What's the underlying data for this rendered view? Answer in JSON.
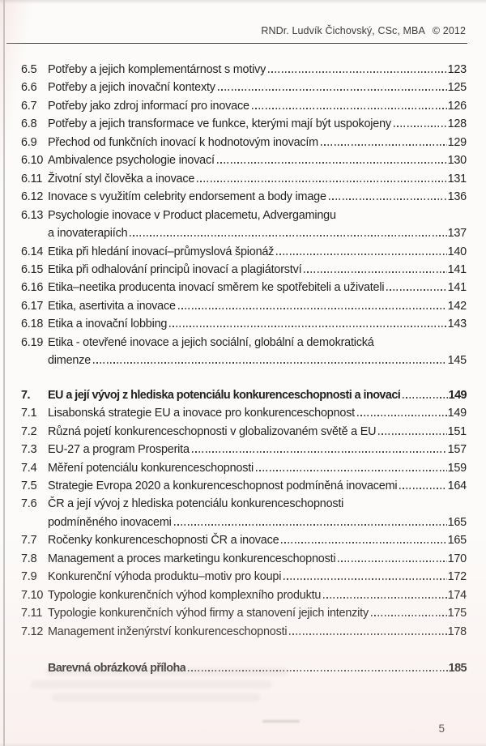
{
  "header": {
    "credit": "RNDr. Ludvík Čichovský, CSc, MBA",
    "copyright": "© 2012"
  },
  "toc": {
    "entries": [
      {
        "num": "6.5",
        "title": "Potřeby a jejich komplementárnost s motivy",
        "page": "123"
      },
      {
        "num": "6.6",
        "title": "Potřeby a jejich inovační kontexty",
        "page": "125"
      },
      {
        "num": "6.7",
        "title": "Potřeby jako zdroj informací pro inovace",
        "page": "126"
      },
      {
        "num": "6.8",
        "title": "Potřeby a jejich transformace ve funkce, kterými mají být uspokojeny",
        "page": "128"
      },
      {
        "num": "6.9",
        "title": "Přechod od funkčních inovací k hodnotovým inovacím",
        "page": "129"
      },
      {
        "num": "6.10",
        "title": "Ambivalence psychologie inovací",
        "page": "130"
      },
      {
        "num": "6.11",
        "title": "Životní styl člověka a inovace",
        "page": "131"
      },
      {
        "num": "6.12",
        "title": "Inovace s využitím celebrity endorsement a body image",
        "page": "136"
      },
      {
        "num": "6.13",
        "title": "Psychologie inovace v Product placemetu, Advergamingu",
        "title2": "a inovaterapiích",
        "page": "137"
      },
      {
        "num": "6.14",
        "title": "Etika při hledání inovací–průmyslová špionáž",
        "page": "140"
      },
      {
        "num": "6.15",
        "title": "Etika při odhalování principů inovací a plagiátorství",
        "page": "141"
      },
      {
        "num": "6.16",
        "title": "Etika–neetika producenta inovací směrem ke spotřebiteli a uživateli",
        "page": "141"
      },
      {
        "num": "6.17",
        "title": "Etika, asertivita a inovace",
        "page": "142"
      },
      {
        "num": "6.18",
        "title": "Etika a inovační lobbing",
        "page": "143"
      },
      {
        "num": "6.19",
        "title": "Etika - otevřené inovace a jejich sociální, globální a demokratická",
        "title2": "dimenze",
        "page": "145"
      },
      {
        "num": "7.",
        "title": "EU a její vývoj z hlediska potenciálu konkurenceschopnosti a inovací",
        "page": "149",
        "bold": true,
        "gap": "section"
      },
      {
        "num": "7.1",
        "title": "Lisabonská strategie EU a inovace pro konkurenceschopnost",
        "page": "149"
      },
      {
        "num": "7.2",
        "title": "Různá pojetí konkurenceschopnosti v globalizovaném světě a EU",
        "page": "151"
      },
      {
        "num": "7.3",
        "title": "EU-27 a program Prosperita",
        "page": "157"
      },
      {
        "num": "7.4",
        "title": "Měření potenciálu konkurenceschopnosti",
        "page": "159"
      },
      {
        "num": "7.5",
        "title": "Strategie Evropa 2020 a konkurenceschopnost podmíněná inovacemi",
        "page": "164"
      },
      {
        "num": "7.6",
        "title": "ČR a její vývoj z hlediska potenciálu konkurenceschopnosti",
        "title2": "podmíněného inovacemi",
        "page": "165"
      },
      {
        "num": "7.7",
        "title": "Ročenky konkurenceschopnosti ČR a inovace",
        "page": "165"
      },
      {
        "num": "7.8",
        "title": "Management a proces marketingu konkurenceschopnosti",
        "page": "170"
      },
      {
        "num": "7.9",
        "title": "Konkurenční výhoda produktu–motiv pro koupi",
        "page": "172"
      },
      {
        "num": "7.10",
        "title": "Typologie konkurenčních výhod komplexního produktu",
        "page": "174"
      },
      {
        "num": "7.11",
        "title": "Typologie konkurenčních výhod firmy a stanovení jejich intenzity",
        "page": "175"
      },
      {
        "num": "7.12",
        "title": "Management inženýrství konkurenceschopnosti",
        "page": "178"
      },
      {
        "num": "",
        "title": "Barevná obrázková příloha",
        "page": "185",
        "bold": true,
        "gap": "appendix"
      }
    ]
  },
  "footer": {
    "page_number": "5"
  }
}
